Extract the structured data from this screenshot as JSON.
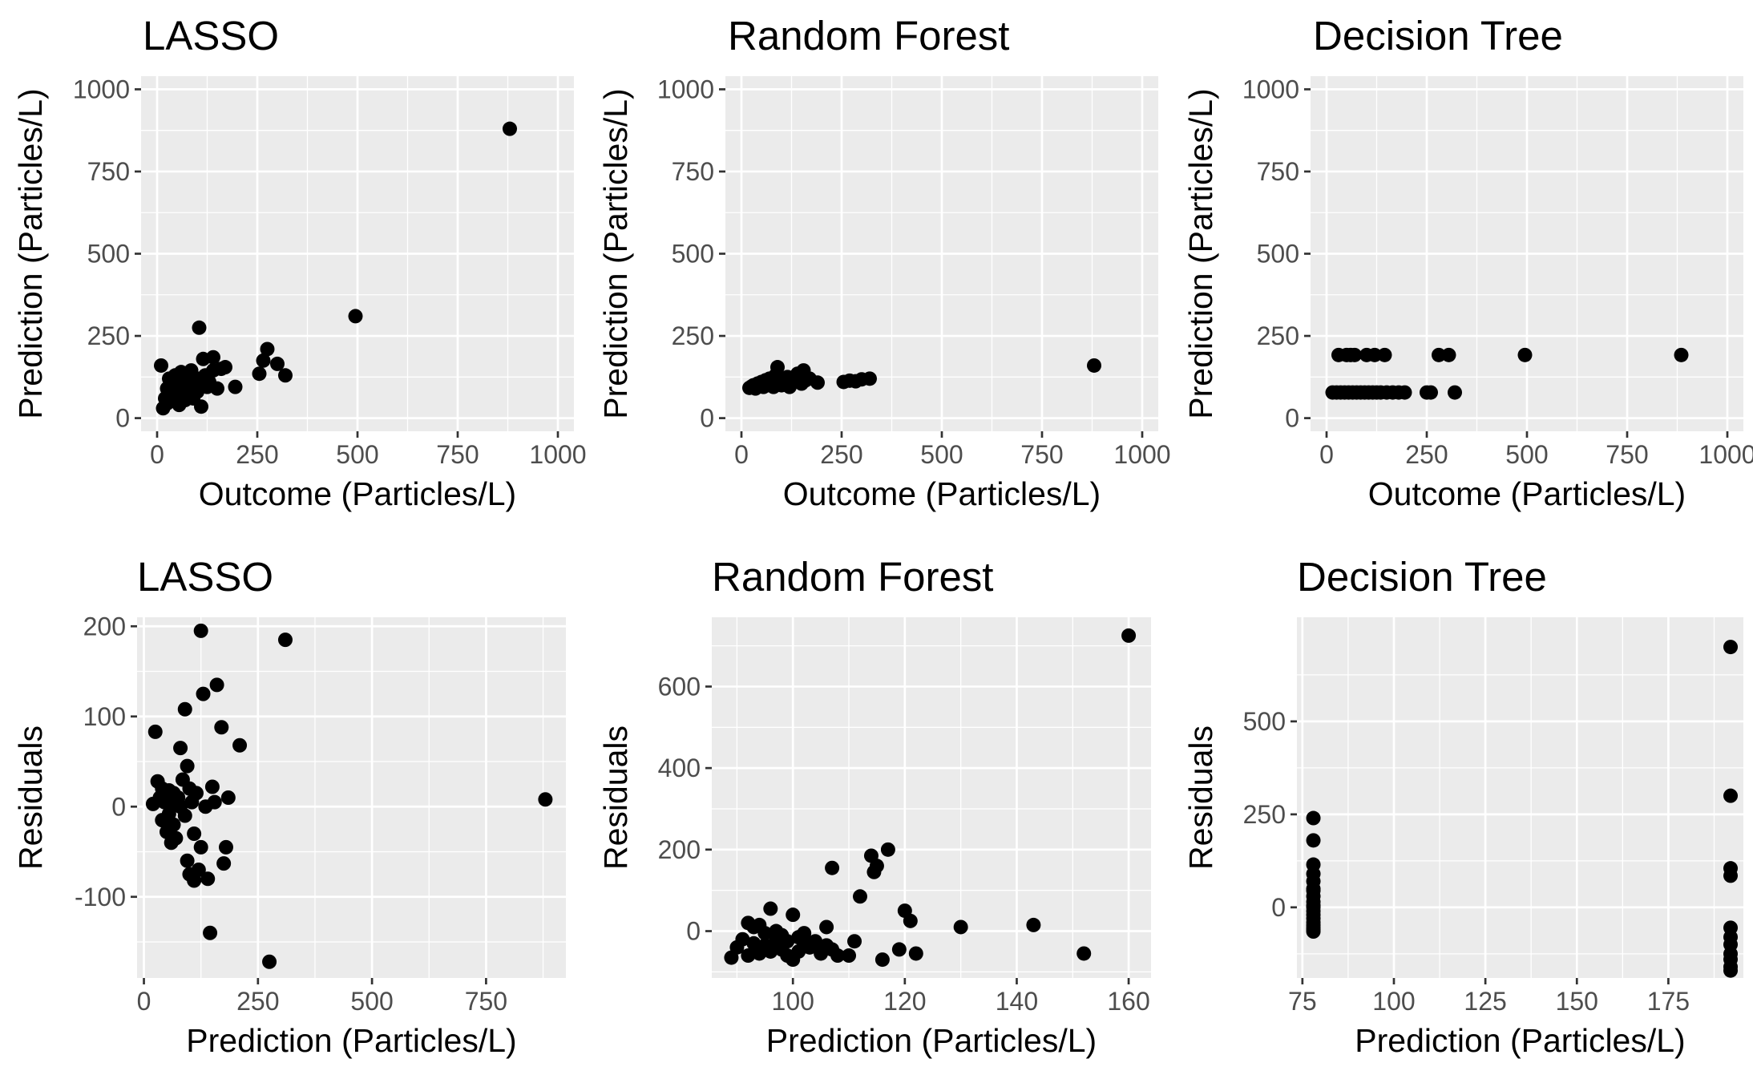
{
  "chart_data": [
    {
      "type": "scatter",
      "title": "LASSO",
      "xlabel": "Outcome (Particles/L)",
      "ylabel": "Prediction (Particles/L)",
      "xlim": [
        -40,
        1040
      ],
      "ylim": [
        -40,
        1040
      ],
      "xticks": [
        0,
        250,
        500,
        750,
        1000
      ],
      "yticks": [
        0,
        250,
        500,
        750,
        1000
      ],
      "x": [
        10,
        15,
        20,
        25,
        25,
        30,
        35,
        35,
        40,
        40,
        45,
        50,
        50,
        55,
        55,
        60,
        60,
        65,
        65,
        70,
        70,
        75,
        75,
        80,
        80,
        85,
        90,
        90,
        95,
        100,
        100,
        105,
        110,
        110,
        115,
        120,
        125,
        130,
        140,
        140,
        150,
        160,
        170,
        195,
        255,
        265,
        275,
        300,
        320,
        495,
        880
      ],
      "y": [
        160,
        30,
        60,
        90,
        45,
        120,
        80,
        55,
        100,
        70,
        130,
        60,
        95,
        110,
        40,
        140,
        75,
        100,
        120,
        55,
        85,
        130,
        110,
        95,
        70,
        145,
        100,
        60,
        115,
        120,
        80,
        275,
        105,
        35,
        180,
        130,
        95,
        110,
        145,
        185,
        90,
        150,
        155,
        95,
        135,
        175,
        210,
        165,
        130,
        310,
        880
      ]
    },
    {
      "type": "scatter",
      "title": "Random Forest",
      "xlabel": "Outcome (Particles/L)",
      "ylabel": "Prediction (Particles/L)",
      "xlim": [
        -40,
        1040
      ],
      "ylim": [
        -40,
        1040
      ],
      "xticks": [
        0,
        250,
        500,
        750,
        1000
      ],
      "yticks": [
        0,
        250,
        500,
        750,
        1000
      ],
      "x": [
        20,
        25,
        30,
        35,
        40,
        45,
        50,
        55,
        60,
        65,
        70,
        75,
        80,
        85,
        90,
        95,
        100,
        105,
        110,
        115,
        120,
        125,
        130,
        140,
        150,
        155,
        160,
        170,
        190,
        255,
        270,
        285,
        300,
        320,
        880
      ],
      "y": [
        92,
        96,
        100,
        90,
        105,
        98,
        110,
        95,
        115,
        100,
        120,
        108,
        95,
        130,
        155,
        112,
        100,
        118,
        104,
        125,
        95,
        110,
        122,
        135,
        105,
        145,
        115,
        120,
        108,
        110,
        114,
        112,
        118,
        120,
        160
      ]
    },
    {
      "type": "scatter",
      "title": "Decision Tree",
      "xlabel": "Outcome (Particles/L)",
      "ylabel": "Prediction (Particles/L)",
      "xlim": [
        -40,
        1040
      ],
      "ylim": [
        -40,
        1040
      ],
      "xticks": [
        0,
        250,
        500,
        750,
        1000
      ],
      "yticks": [
        0,
        250,
        500,
        750,
        1000
      ],
      "x": [
        15,
        25,
        35,
        45,
        55,
        65,
        75,
        85,
        95,
        105,
        115,
        125,
        135,
        150,
        165,
        180,
        195,
        250,
        260,
        320,
        30,
        50,
        60,
        70,
        100,
        120,
        145,
        280,
        305,
        495,
        885
      ],
      "y": [
        78,
        78,
        78,
        78,
        78,
        78,
        78,
        78,
        78,
        78,
        78,
        78,
        78,
        78,
        78,
        78,
        78,
        78,
        78,
        78,
        192,
        192,
        192,
        192,
        192,
        192,
        192,
        192,
        192,
        192,
        192
      ]
    },
    {
      "type": "scatter",
      "title": "LASSO",
      "xlabel": "Prediction (Particles/L)",
      "ylabel": "Residuals",
      "xlim": [
        -15,
        925
      ],
      "ylim": [
        -190,
        210
      ],
      "xticks": [
        0,
        250,
        500,
        750
      ],
      "yticks": [
        -100,
        0,
        100,
        200
      ],
      "x": [
        20,
        25,
        30,
        35,
        40,
        40,
        45,
        50,
        50,
        55,
        55,
        60,
        60,
        65,
        65,
        70,
        70,
        75,
        80,
        80,
        85,
        90,
        90,
        95,
        95,
        100,
        100,
        105,
        110,
        110,
        115,
        120,
        125,
        125,
        130,
        135,
        140,
        145,
        150,
        155,
        160,
        170,
        175,
        180,
        185,
        210,
        275,
        310,
        880
      ],
      "y": [
        3,
        83,
        28,
        10,
        -15,
        20,
        5,
        -28,
        12,
        -8,
        18,
        0,
        -40,
        15,
        -20,
        5,
        -35,
        10,
        0,
        65,
        30,
        -10,
        108,
        45,
        -60,
        20,
        -75,
        5,
        -30,
        -82,
        15,
        -70,
        195,
        -45,
        125,
        0,
        -80,
        -140,
        22,
        5,
        135,
        88,
        -63,
        -45,
        10,
        68,
        -172,
        185,
        8
      ]
    },
    {
      "type": "scatter",
      "title": "Random Forest",
      "xlabel": "Prediction (Particles/L)",
      "ylabel": "Residuals",
      "xlim": [
        85.5,
        164
      ],
      "ylim": [
        -115,
        770
      ],
      "xticks": [
        100,
        120,
        140,
        160
      ],
      "yticks": [
        0,
        200,
        400,
        600
      ],
      "x": [
        89,
        90,
        91,
        92,
        92,
        93,
        93,
        94,
        94,
        95,
        95,
        96,
        96,
        97,
        97,
        98,
        98,
        99,
        99,
        100,
        100,
        101,
        101,
        102,
        102,
        103,
        104,
        105,
        106,
        106,
        107,
        107,
        108,
        110,
        111,
        112,
        114,
        114.5,
        115,
        116,
        117,
        119,
        120,
        121,
        122,
        130,
        143,
        152,
        160
      ],
      "y": [
        -65,
        -40,
        -20,
        20,
        -60,
        -30,
        10,
        -55,
        15,
        -35,
        -5,
        55,
        -50,
        -20,
        0,
        -45,
        -10,
        -60,
        -25,
        -70,
        40,
        -15,
        -50,
        -30,
        -5,
        -40,
        -25,
        -55,
        -35,
        10,
        155,
        -45,
        -60,
        -60,
        -25,
        85,
        185,
        145,
        160,
        -70,
        200,
        -45,
        50,
        25,
        -55,
        10,
        15,
        -55,
        725
      ]
    },
    {
      "type": "scatter",
      "title": "Decision Tree",
      "xlabel": "Prediction (Particles/L)",
      "ylabel": "Residuals",
      "xlim": [
        73.5,
        195.5
      ],
      "ylim": [
        -190,
        780
      ],
      "xticks": [
        75,
        100,
        125,
        150,
        175
      ],
      "yticks": [
        0,
        250,
        500
      ],
      "x": [
        78,
        78,
        78,
        78,
        78,
        78,
        78,
        78,
        78,
        78,
        78,
        78,
        78,
        78,
        78,
        78,
        78,
        78,
        78,
        192,
        192,
        192,
        192,
        192,
        192,
        192,
        192,
        192,
        192,
        192
      ],
      "y": [
        240,
        180,
        115,
        90,
        70,
        50,
        30,
        15,
        0,
        -10,
        -20,
        -30,
        -40,
        -48,
        -55,
        -60,
        -65,
        5,
        45,
        700,
        300,
        105,
        85,
        -55,
        -80,
        -100,
        -125,
        -140,
        -160,
        -170
      ]
    }
  ]
}
